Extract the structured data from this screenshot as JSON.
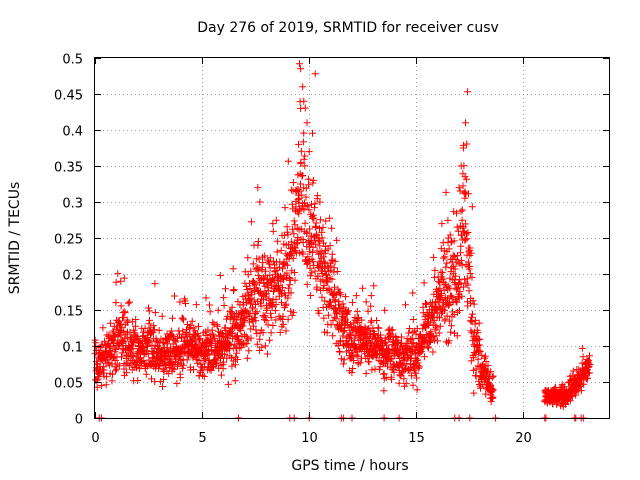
{
  "chart_data": {
    "type": "scatter",
    "title": "Day 276 of 2019, SRMTID for receiver cusv",
    "xlabel": "GPS time / hours",
    "ylabel": "SRMTID / TECUs",
    "xlim": [
      0,
      24
    ],
    "ylim": [
      0,
      0.5
    ],
    "xticks": [
      0,
      5,
      10,
      15,
      20
    ],
    "yticks": [
      0,
      0.05,
      0.1,
      0.15,
      0.2,
      0.25,
      0.3,
      0.35,
      0.4,
      0.45,
      0.5
    ],
    "ytick_labels": [
      "0",
      "0.05",
      "0.1",
      "0.15",
      "0.2",
      "0.25",
      "0.3",
      "0.35",
      "0.4",
      "0.45",
      "0.5"
    ],
    "grid": true,
    "marker": "+",
    "series": [
      {
        "name": "SRMTID",
        "color": "#ff0000",
        "profile": [
          [
            0.0,
            0.08,
            0.03
          ],
          [
            0.5,
            0.085,
            0.03
          ],
          [
            1.0,
            0.1,
            0.035
          ],
          [
            1.2,
            0.12,
            0.045
          ],
          [
            1.5,
            0.1,
            0.035
          ],
          [
            2.0,
            0.09,
            0.03
          ],
          [
            2.5,
            0.1,
            0.035
          ],
          [
            3.0,
            0.085,
            0.03
          ],
          [
            3.5,
            0.09,
            0.03
          ],
          [
            4.0,
            0.095,
            0.03
          ],
          [
            4.5,
            0.1,
            0.03
          ],
          [
            5.0,
            0.09,
            0.03
          ],
          [
            5.5,
            0.095,
            0.03
          ],
          [
            6.0,
            0.1,
            0.035
          ],
          [
            6.5,
            0.11,
            0.04
          ],
          [
            7.0,
            0.13,
            0.045
          ],
          [
            7.5,
            0.17,
            0.06
          ],
          [
            8.0,
            0.16,
            0.06
          ],
          [
            8.5,
            0.18,
            0.06
          ],
          [
            9.0,
            0.2,
            0.07
          ],
          [
            9.5,
            0.28,
            0.09
          ],
          [
            9.8,
            0.3,
            0.1
          ],
          [
            10.0,
            0.26,
            0.08
          ],
          [
            10.5,
            0.22,
            0.07
          ],
          [
            11.0,
            0.18,
            0.06
          ],
          [
            11.5,
            0.12,
            0.04
          ],
          [
            12.0,
            0.1,
            0.035
          ],
          [
            12.5,
            0.11,
            0.035
          ],
          [
            13.0,
            0.1,
            0.03
          ],
          [
            13.5,
            0.09,
            0.03
          ],
          [
            14.0,
            0.085,
            0.03
          ],
          [
            14.5,
            0.08,
            0.03
          ],
          [
            15.0,
            0.08,
            0.03
          ],
          [
            15.5,
            0.12,
            0.04
          ],
          [
            16.0,
            0.16,
            0.05
          ],
          [
            16.5,
            0.18,
            0.06
          ],
          [
            17.0,
            0.2,
            0.08
          ],
          [
            17.3,
            0.28,
            0.1
          ],
          [
            17.6,
            0.12,
            0.06
          ],
          [
            18.0,
            0.07,
            0.03
          ],
          [
            18.5,
            0.04,
            0.02
          ],
          [
            18.6,
            0.04,
            0.02
          ]
        ],
        "profile_late": [
          [
            21.0,
            0.03,
            0.012
          ],
          [
            21.5,
            0.03,
            0.012
          ],
          [
            22.0,
            0.03,
            0.012
          ],
          [
            22.5,
            0.045,
            0.015
          ],
          [
            23.0,
            0.07,
            0.015
          ],
          [
            23.1,
            0.075,
            0.012
          ]
        ],
        "peaks": [
          {
            "x": 9.55,
            "y": 0.492
          },
          {
            "x": 9.6,
            "y": 0.485
          },
          {
            "x": 9.7,
            "y": 0.46
          },
          {
            "x": 9.75,
            "y": 0.44
          },
          {
            "x": 9.6,
            "y": 0.43
          },
          {
            "x": 9.9,
            "y": 0.41
          },
          {
            "x": 9.5,
            "y": 0.38
          },
          {
            "x": 10.0,
            "y": 0.37
          },
          {
            "x": 10.2,
            "y": 0.33
          },
          {
            "x": 10.5,
            "y": 0.3
          },
          {
            "x": 17.4,
            "y": 0.453
          },
          {
            "x": 17.3,
            "y": 0.41
          },
          {
            "x": 17.2,
            "y": 0.375
          },
          {
            "x": 17.1,
            "y": 0.35
          },
          {
            "x": 17.0,
            "y": 0.32
          },
          {
            "x": 16.2,
            "y": 0.27
          },
          {
            "x": 16.5,
            "y": 0.25
          },
          {
            "x": 7.6,
            "y": 0.32
          },
          {
            "x": 7.7,
            "y": 0.3
          },
          {
            "x": 8.3,
            "y": 0.27
          },
          {
            "x": 1.2,
            "y": 0.19
          },
          {
            "x": 12.2,
            "y": 0.17
          },
          {
            "x": 12.9,
            "y": 0.17
          }
        ],
        "baseline_x": [
          0.2,
          0.3,
          6.7,
          9.1,
          9.3,
          10.0,
          11.5,
          11.6,
          12.0,
          13.5,
          14.2,
          16.8,
          17.0,
          17.5,
          18.7,
          21.0,
          21.05,
          22.4,
          22.45,
          22.7,
          22.8
        ]
      }
    ]
  }
}
